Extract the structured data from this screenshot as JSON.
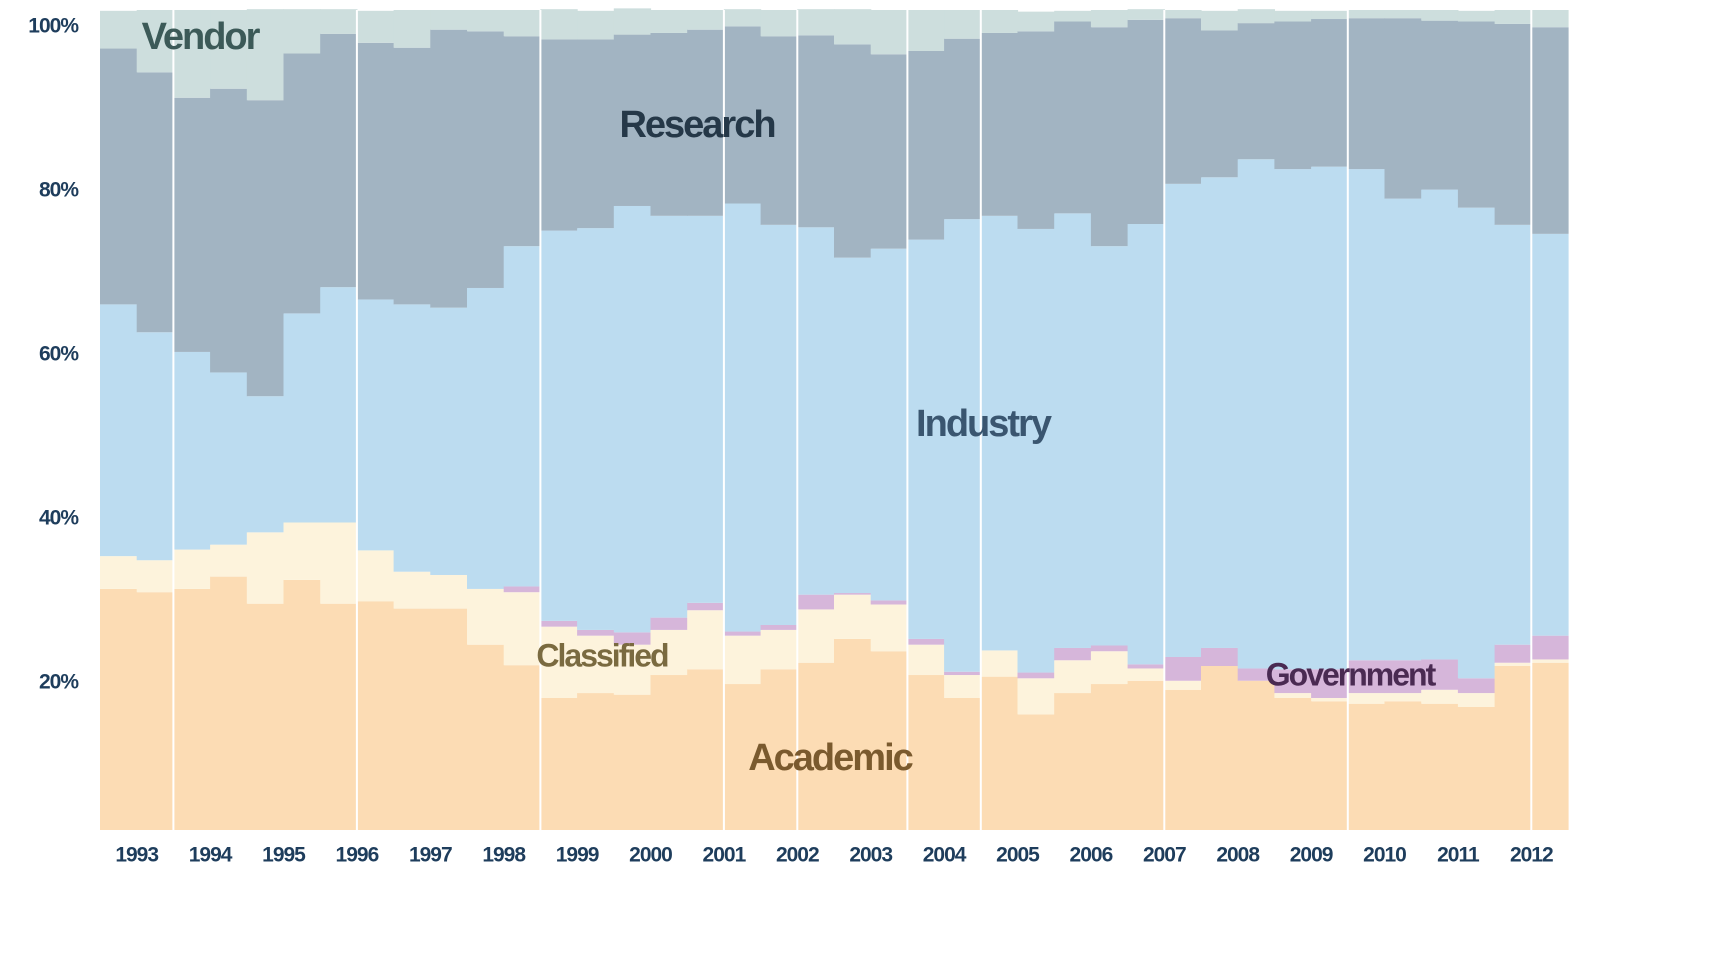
{
  "chart_data": {
    "type": "stacked_bar_100",
    "categories": [
      "1993",
      null,
      "1994",
      null,
      "1995",
      null,
      "1996",
      null,
      "1997",
      null,
      "1998",
      null,
      "1999",
      null,
      "2000",
      null,
      "2001",
      null,
      "2002",
      null,
      "2003",
      null,
      "2004",
      null,
      "2005",
      null,
      "2006",
      null,
      "2007",
      null,
      "2008",
      null,
      "2009",
      null,
      "2010",
      null,
      "2011",
      null,
      "2012",
      null
    ],
    "ylim": [
      0,
      100
    ],
    "yticks": [
      {
        "value": 20,
        "label": "20%"
      },
      {
        "value": 40,
        "label": "40%"
      },
      {
        "value": 60,
        "label": "60%"
      },
      {
        "value": 80,
        "label": "80%"
      },
      {
        "value": 100,
        "label": "100%"
      }
    ],
    "series": [
      {
        "name": "Academic",
        "color": "#fcdcb4",
        "label_color": "#7a5a2e",
        "values": [
          29.4,
          29.0,
          29.4,
          30.9,
          27.6,
          30.5,
          27.6,
          27.9,
          27.0,
          27.0,
          22.6,
          20.1,
          16.1,
          16.7,
          16.5,
          18.9,
          19.6,
          17.8,
          19.6,
          20.4,
          23.3,
          21.8,
          18.9,
          16.1,
          18.7,
          14.1,
          16.7,
          17.8,
          18.2,
          17.1,
          20.0,
          18.2,
          16.1,
          15.7,
          15.4,
          15.7,
          15.4,
          15.0,
          20.0,
          20.4
        ]
      },
      {
        "name": "Classified",
        "color": "#fdf3dc",
        "label_color": "#7a6a40",
        "values": [
          4.0,
          3.9,
          4.8,
          3.9,
          8.7,
          7.0,
          9.9,
          6.2,
          4.5,
          4.1,
          6.8,
          8.9,
          8.7,
          7.0,
          6.1,
          5.5,
          7.2,
          5.9,
          4.8,
          6.5,
          5.4,
          5.7,
          3.7,
          2.8,
          3.2,
          4.4,
          4.0,
          4.0,
          1.5,
          1.1,
          0,
          0,
          0.6,
          0.4,
          1.3,
          1.0,
          1.7,
          1.7,
          0.4,
          0.4
        ]
      },
      {
        "name": "Government",
        "color": "#d6b6da",
        "label_color": "#4a2a52",
        "values": [
          0,
          0,
          0,
          0,
          0,
          0,
          0,
          0,
          0,
          0,
          0,
          0.7,
          0.7,
          0.7,
          1.5,
          1.5,
          0.9,
          0.5,
          0.6,
          1.8,
          0.2,
          0.5,
          0.7,
          0.4,
          0,
          0.7,
          1.5,
          0.7,
          0.5,
          2.9,
          2.2,
          1.5,
          2.9,
          3.5,
          4.0,
          4.0,
          3.7,
          1.8,
          2.2,
          2.9
        ]
      },
      {
        "name": "Industry",
        "color": "#bcdcf0",
        "label_color": "#3a5670",
        "values": [
          30.7,
          27.8,
          24.1,
          21.0,
          16.6,
          25.5,
          28.7,
          30.6,
          32.6,
          32.6,
          36.7,
          41.5,
          47.6,
          49.0,
          52.0,
          49.0,
          47.2,
          52.2,
          48.8,
          44.8,
          40.9,
          42.9,
          48.7,
          55.2,
          53.0,
          54.1,
          53.0,
          48.7,
          53.7,
          57.7,
          57.4,
          62.1,
          61.0,
          61.3,
          59.9,
          56.3,
          57.3,
          57.4,
          51.2,
          49.0
        ]
      },
      {
        "name": "Research",
        "color": "#a2b4c2",
        "label_color": "#253848",
        "values": [
          31.2,
          31.7,
          31.0,
          34.6,
          36.1,
          31.7,
          30.9,
          31.3,
          31.3,
          33.9,
          31.3,
          25.6,
          23.3,
          23.0,
          20.9,
          22.3,
          22.7,
          21.6,
          23.0,
          23.4,
          26.0,
          23.7,
          23.0,
          22.0,
          22.3,
          24.1,
          23.4,
          26.7,
          24.9,
          20.2,
          17.9,
          16.6,
          18.0,
          18.0,
          18.4,
          22.0,
          20.6,
          22.7,
          24.5,
          25.2
        ]
      },
      {
        "name": "Vendor",
        "color": "#cddedd",
        "label_color": "#3c5a58",
        "values": [
          4.6,
          7.6,
          10.7,
          9.6,
          11.1,
          5.4,
          3.0,
          3.9,
          4.6,
          2.4,
          2.6,
          3.2,
          3.7,
          3.5,
          3.2,
          2.8,
          2.4,
          2.1,
          3.2,
          3.2,
          4.3,
          5.4,
          5.0,
          3.5,
          2.8,
          2.4,
          1.3,
          2.1,
          1.3,
          1.0,
          2.4,
          1.7,
          1.3,
          1.0,
          1.0,
          1.0,
          1.3,
          1.3,
          1.7,
          2.1
        ]
      }
    ]
  }
}
